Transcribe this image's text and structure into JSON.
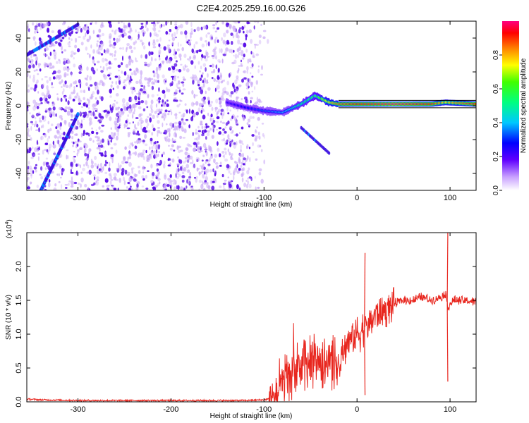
{
  "figure_title": "C2E4.2025.259.16.00.G26",
  "colors": {
    "snr_line": "#e8261e",
    "scatter_dot": "#5a10e8",
    "scatter_light": "#c9a8f6",
    "ridge_core": "#ff2a2a"
  },
  "chart_data": [
    {
      "type": "heatmap",
      "title": "C2E4.2025.259.16.00.G26",
      "xlabel": "Height of straight line (km)",
      "ylabel": "Frequency (Hz)",
      "xlim": [
        -355,
        128
      ],
      "ylim": [
        -50,
        50
      ],
      "xticks": [
        -300,
        -200,
        -100,
        0,
        100
      ],
      "xtick_labels": [
        "-300",
        "-200",
        "-100",
        "0",
        "100"
      ],
      "yticks": [
        -40,
        -20,
        0,
        20,
        40
      ],
      "ytick_labels": [
        "-40",
        "-20",
        "0",
        "20",
        "40"
      ],
      "colorbar": {
        "label": "Normalized spectral amplitude",
        "range": [
          0,
          1
        ],
        "ticks": [
          0.0,
          0.2,
          0.4,
          0.6,
          0.8
        ],
        "tick_labels": [
          "0.0",
          "0.2",
          "0.4",
          "0.6",
          "0.8"
        ],
        "colormap": "rainbow (white-violet-blue-cyan-green-yellow-red-magenta)"
      },
      "features": {
        "noise_region_x": [
          -355,
          -100
        ],
        "signal_ridge": {
          "x": [
            -140,
            -120,
            -100,
            -80,
            -60,
            -45,
            -30,
            -20,
            0,
            40,
            80,
            95,
            128
          ],
          "frequency": [
            2,
            -1,
            -3,
            -4,
            1,
            6,
            2,
            1,
            1,
            1,
            1,
            2,
            1
          ],
          "amplitude": [
            0.25,
            0.3,
            0.35,
            0.4,
            0.55,
            0.6,
            0.8,
            0.9,
            0.95,
            1.0,
            0.95,
            0.8,
            0.95
          ]
        },
        "diagonal_streak_1": {
          "x": [
            -340,
            -300
          ],
          "frequency": [
            -50,
            -5
          ]
        },
        "diagonal_streak_2": {
          "x": [
            -355,
            -300
          ],
          "frequency": [
            30,
            48
          ]
        },
        "secondary_branch": {
          "x": [
            -60,
            -30
          ],
          "frequency": [
            -13,
            -28
          ]
        }
      }
    },
    {
      "type": "line",
      "xlabel": "Height of straight line (km)",
      "ylabel": "SNR (10 * v/v)",
      "scale_label": "(x10",
      "scale_exponent": "4",
      "scale_suffix": ")",
      "xlim": [
        -355,
        128
      ],
      "ylim": [
        0,
        2.5
      ],
      "xticks": [
        -300,
        -200,
        -100,
        0,
        100
      ],
      "xtick_labels": [
        "-300",
        "-200",
        "-100",
        "0",
        "100"
      ],
      "yticks": [
        0.0,
        0.5,
        1.0,
        1.5,
        2.0
      ],
      "ytick_labels": [
        "0.0",
        "0.5",
        "1.0",
        "1.5",
        "2.0"
      ],
      "series": [
        {
          "name": "SNR",
          "x": [
            -355,
            -340,
            -300,
            -200,
            -120,
            -100,
            -92,
            -88,
            -80,
            -70,
            -60,
            -50,
            -40,
            -30,
            -20,
            -10,
            0,
            10,
            20,
            30,
            40,
            50,
            60,
            70,
            80,
            90,
            95,
            98,
            100,
            105,
            110,
            128
          ],
          "y": [
            0.04,
            0.03,
            0.02,
            0.02,
            0.02,
            0.03,
            0.05,
            0.15,
            0.25,
            0.4,
            0.5,
            0.6,
            0.6,
            0.6,
            0.5,
            0.9,
            1.0,
            1.1,
            1.3,
            1.35,
            1.45,
            1.5,
            1.5,
            1.55,
            1.5,
            1.55,
            1.6,
            1.4,
            1.45,
            1.5,
            1.5,
            1.48
          ]
        }
      ],
      "spikes": [
        {
          "x": 8,
          "y": 2.2
        },
        {
          "x": 8,
          "y": 0.1
        },
        {
          "x": 97,
          "y": 2.5
        },
        {
          "x": 97,
          "y": 0.3
        }
      ]
    }
  ]
}
